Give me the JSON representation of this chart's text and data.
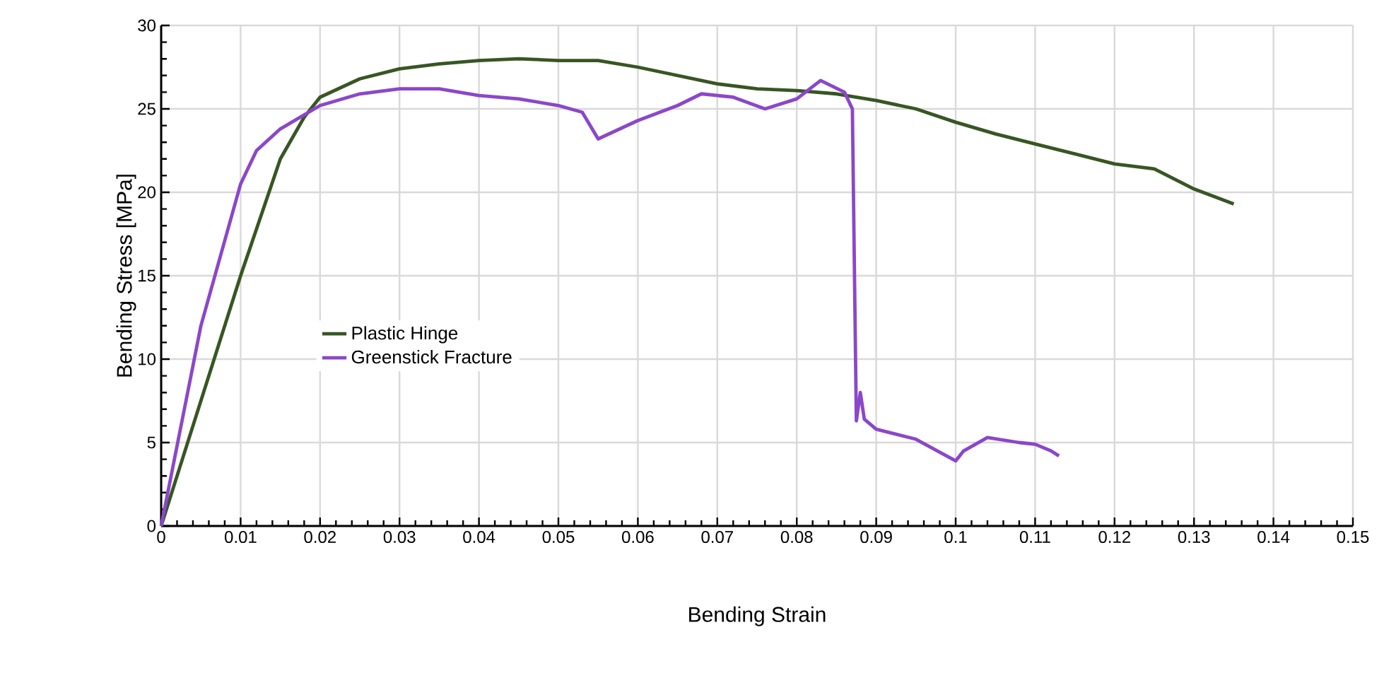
{
  "chart_data": {
    "type": "line",
    "xlabel": "Bending Strain",
    "ylabel": "Bending Stress [MPa]",
    "xlim": [
      0,
      0.15
    ],
    "ylim": [
      0,
      30
    ],
    "xticks": [
      0,
      0.01,
      0.02,
      0.03,
      0.04,
      0.05,
      0.06,
      0.07,
      0.08,
      0.09,
      0.1,
      0.11,
      0.12,
      0.13,
      0.14,
      0.15
    ],
    "yticks": [
      0,
      5,
      10,
      15,
      20,
      25,
      30
    ],
    "grid": true,
    "legend": "left",
    "marker": "none",
    "line_style": "solid",
    "series": [
      {
        "name": "Plastic Hinge",
        "color": "#375623",
        "x": [
          0,
          0.005,
          0.01,
          0.015,
          0.018,
          0.02,
          0.025,
          0.03,
          0.035,
          0.04,
          0.045,
          0.05,
          0.055,
          0.06,
          0.065,
          0.07,
          0.075,
          0.08,
          0.085,
          0.09,
          0.095,
          0.1,
          0.105,
          0.11,
          0.115,
          0.12,
          0.125,
          0.13,
          0.135
        ],
        "values": [
          0,
          7.5,
          15,
          22,
          24.5,
          25.7,
          26.8,
          27.4,
          27.7,
          27.9,
          28,
          27.9,
          27.9,
          27.5,
          27,
          26.5,
          26.2,
          26.1,
          25.9,
          25.5,
          25,
          24.2,
          23.5,
          22.9,
          22.3,
          21.7,
          21.4,
          20.2,
          19.3
        ]
      },
      {
        "name": "Greenstick Fracture",
        "color": "#8b47c9",
        "x": [
          0,
          0.005,
          0.01,
          0.012,
          0.015,
          0.02,
          0.025,
          0.03,
          0.035,
          0.04,
          0.045,
          0.05,
          0.053,
          0.055,
          0.06,
          0.065,
          0.068,
          0.072,
          0.076,
          0.08,
          0.083,
          0.086,
          0.087,
          0.0875,
          0.088,
          0.0885,
          0.09,
          0.095,
          0.1,
          0.101,
          0.104,
          0.108,
          0.11,
          0.112,
          0.113
        ],
        "values": [
          0,
          12,
          20.5,
          22.5,
          23.8,
          25.2,
          25.9,
          26.2,
          26.2,
          25.8,
          25.6,
          25.2,
          24.8,
          23.2,
          24.3,
          25.2,
          25.9,
          25.7,
          25,
          25.6,
          26.7,
          26,
          25,
          6.3,
          8,
          6.4,
          5.8,
          5.2,
          3.9,
          4.5,
          5.3,
          5,
          4.9,
          4.5,
          4.2
        ]
      }
    ]
  }
}
